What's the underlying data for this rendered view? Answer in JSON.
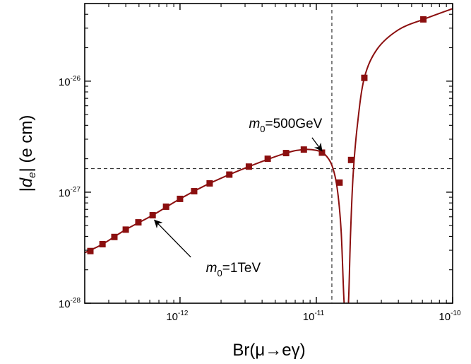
{
  "chart_data": {
    "type": "line",
    "xlabel": "Br(μ→eγ)",
    "ylabel": "|d_e| (e cm)",
    "xscale": "log",
    "yscale": "log",
    "xlim": [
      2e-13,
      1e-10
    ],
    "ylim": [
      1e-28,
      5e-26
    ],
    "x_ticks": [
      {
        "value": 1e-12,
        "base": "10",
        "exp": "-12"
      },
      {
        "value": 1e-11,
        "base": "10",
        "exp": "-11"
      },
      {
        "value": 1e-10,
        "base": "10",
        "exp": "-10"
      }
    ],
    "y_ticks": [
      {
        "value": 1e-28,
        "base": "10",
        "exp": "-28"
      },
      {
        "value": 1e-27,
        "base": "10",
        "exp": "-27"
      },
      {
        "value": 1e-26,
        "base": "10",
        "exp": "-26"
      }
    ],
    "grid": false,
    "series_color": "#8b0f0f",
    "series": [
      {
        "marker": "square",
        "x": [
          2.2e-13,
          2.7e-13,
          3.3e-13,
          4e-13,
          4.95e-13,
          6.3e-13,
          7.9e-13,
          1e-12,
          1.27e-12,
          1.65e-12,
          2.3e-12,
          3.2e-12,
          4.4e-12,
          6e-12,
          8.1e-12,
          1.1e-11,
          1.48e-11,
          1.8e-11,
          2.25e-11,
          6.1e-11
        ],
        "y": [
          2.95e-28,
          3.4e-28,
          3.95e-28,
          4.6e-28,
          5.35e-28,
          6.2e-28,
          7.4e-28,
          8.7e-28,
          1.02e-27,
          1.2e-27,
          1.44e-27,
          1.7e-27,
          2e-27,
          2.25e-27,
          2.42e-27,
          2.27e-27,
          1.22e-27,
          1.95e-27,
          1.07e-26,
          3.6e-26
        ]
      }
    ],
    "curve": {
      "x": [
        2e-13,
        2.7e-13,
        4e-13,
        6.3e-13,
        1e-12,
        1.65e-12,
        3.2e-12,
        6e-12,
        8.1e-12,
        1e-11,
        1.15e-11,
        1.3e-11,
        1.42e-11,
        1.52e-11,
        1.6e-11,
        1.66e-11,
        1.72e-11,
        1.78e-11,
        1.86e-11,
        2e-11,
        2.25e-11,
        2.8e-11,
        4e-11,
        6.1e-11,
        1e-10
      ],
      "y": [
        2.85e-28,
        3.4e-28,
        4.6e-28,
        6.2e-28,
        8.7e-28,
        1.2e-27,
        1.7e-27,
        2.25e-27,
        2.42e-27,
        2.38e-27,
        2.2e-27,
        1.75e-27,
        1.1e-27,
        4.5e-28,
        1e-28,
        1e-28,
        1e-28,
        4e-28,
        1.4e-27,
        4e-27,
        1.07e-26,
        1.95e-26,
        2.9e-26,
        3.6e-26,
        4.5e-26
      ]
    },
    "reference_lines": [
      {
        "orientation": "vertical",
        "value": 1.3e-11,
        "style": "dashed"
      },
      {
        "orientation": "horizontal",
        "value": 1.63e-27,
        "style": "dashed"
      }
    ],
    "annotations": [
      {
        "prefix": "m",
        "sub": "0",
        "suffix": "=500GeV",
        "text_at": [
          3.2e-12,
          3.8e-27
        ],
        "arrow_from": [
          9.3e-12,
          3.1e-27
        ],
        "arrow_to": [
          1.1e-11,
          2.35e-27
        ]
      },
      {
        "prefix": "m",
        "sub": "0",
        "suffix": "=1TeV",
        "text_at": [
          1.55e-12,
          1.9e-28
        ],
        "arrow_from": [
          1.2e-12,
          2.6e-28
        ],
        "arrow_to": [
          6.5e-13,
          5.6e-28
        ]
      }
    ]
  }
}
